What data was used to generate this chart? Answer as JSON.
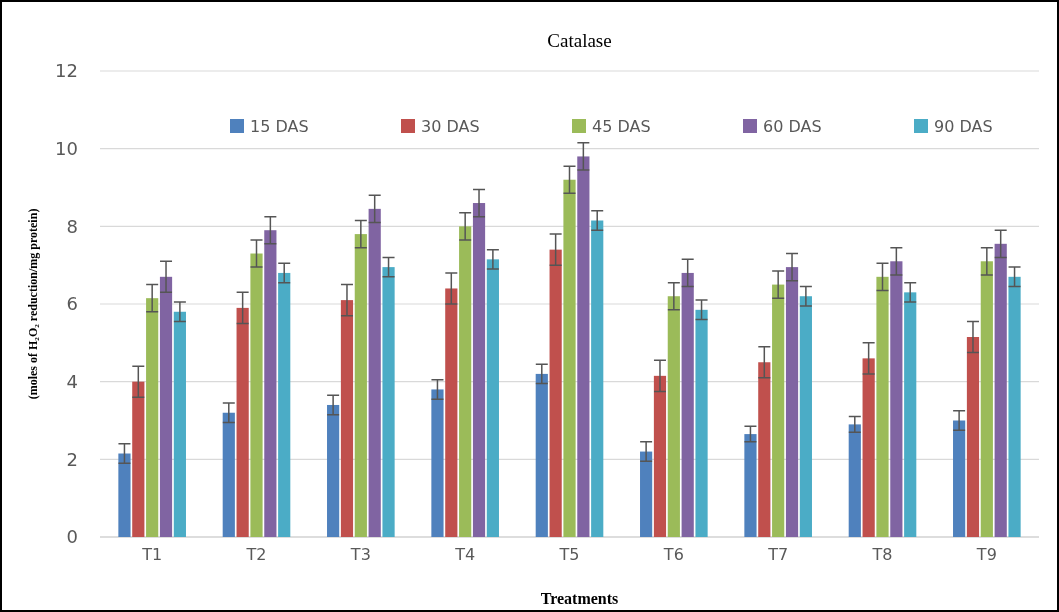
{
  "chart_data": {
    "type": "bar",
    "title": "Catalase",
    "xlabel": "Treatments",
    "ylabel": "(moles of H₂O₂ reduction/mg protein)",
    "categories": [
      "T1",
      "T2",
      "T3",
      "T4",
      "T5",
      "T6",
      "T7",
      "T8",
      "T9"
    ],
    "series": [
      {
        "name": "15 DAS",
        "color": "#4f81bd",
        "values": [
          2.15,
          3.2,
          3.4,
          3.8,
          4.2,
          2.2,
          2.65,
          2.9,
          3.0
        ],
        "errors": [
          0.25,
          0.25,
          0.25,
          0.25,
          0.25,
          0.25,
          0.2,
          0.2,
          0.25
        ]
      },
      {
        "name": "30 DAS",
        "color": "#c0504d",
        "values": [
          4.0,
          5.9,
          6.1,
          6.4,
          7.4,
          4.15,
          4.5,
          4.6,
          5.15
        ],
        "errors": [
          0.4,
          0.4,
          0.4,
          0.4,
          0.4,
          0.4,
          0.4,
          0.4,
          0.4
        ]
      },
      {
        "name": "45 DAS",
        "color": "#9bbb59",
        "values": [
          6.15,
          7.3,
          7.8,
          8.0,
          9.2,
          6.2,
          6.5,
          6.7,
          7.1
        ],
        "errors": [
          0.35,
          0.35,
          0.35,
          0.35,
          0.35,
          0.35,
          0.35,
          0.35,
          0.35
        ]
      },
      {
        "name": "60 DAS",
        "color": "#8064a2",
        "values": [
          6.7,
          7.9,
          8.45,
          8.6,
          9.8,
          6.8,
          6.95,
          7.1,
          7.55
        ],
        "errors": [
          0.4,
          0.35,
          0.35,
          0.35,
          0.35,
          0.35,
          0.35,
          0.35,
          0.35
        ]
      },
      {
        "name": "90 DAS",
        "color": "#4bacc6",
        "values": [
          5.8,
          6.8,
          6.95,
          7.15,
          8.15,
          5.85,
          6.2,
          6.3,
          6.7
        ],
        "errors": [
          0.25,
          0.25,
          0.25,
          0.25,
          0.25,
          0.25,
          0.25,
          0.25,
          0.25
        ]
      }
    ],
    "ylim": [
      0,
      12
    ],
    "yticks": [
      0,
      2,
      4,
      6,
      8,
      10,
      12
    ],
    "grid": "y",
    "legend": "top"
  }
}
